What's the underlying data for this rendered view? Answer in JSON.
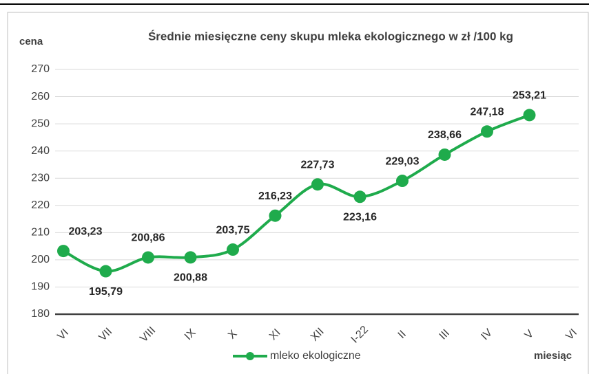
{
  "chart_data": {
    "type": "line",
    "title": "Średnie miesięczne ceny skupu mleka ekologicznego w zł /100 kg",
    "y_label": "cena",
    "x_label": "miesiąc",
    "categories": [
      "VI",
      "VII",
      "VIII",
      "IX",
      "X",
      "XI",
      "XII",
      "I-22",
      "II",
      "III",
      "IV",
      "V",
      "VI"
    ],
    "series": [
      {
        "name": "mleko ekologiczne",
        "color": "#1fab4c",
        "values": [
          203.23,
          195.79,
          200.86,
          200.88,
          203.75,
          216.23,
          227.73,
          223.16,
          229.03,
          238.66,
          247.18,
          253.21,
          null
        ],
        "value_labels": [
          "203,23",
          "195,79",
          "200,86",
          "200,88",
          "203,75",
          "216,23",
          "227,73",
          "223,16",
          "229,03",
          "238,66",
          "247,18",
          "253,21",
          null
        ]
      }
    ],
    "ylim": [
      180,
      270
    ],
    "yticks": [
      180,
      190,
      200,
      210,
      220,
      230,
      240,
      250,
      260,
      270
    ],
    "grid": true,
    "legend": "bottom"
  }
}
